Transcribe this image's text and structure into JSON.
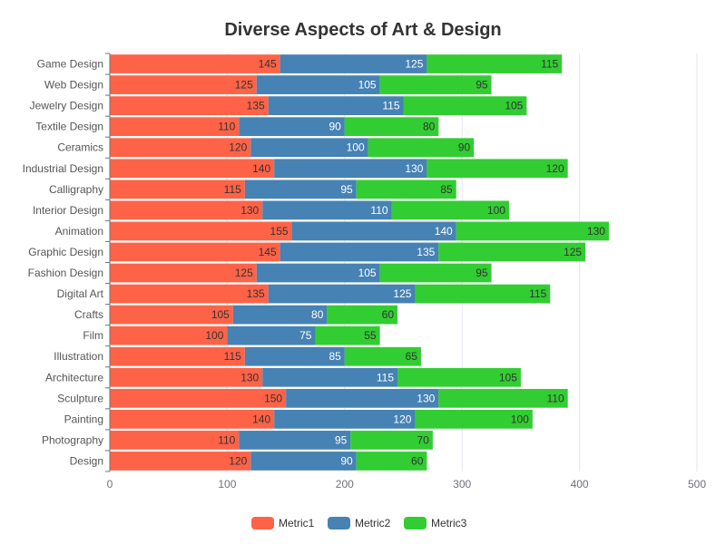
{
  "chart_data": {
    "type": "bar",
    "orientation": "horizontal",
    "stacked": true,
    "title": "Diverse Aspects of Art & Design",
    "xlabel": "",
    "ylabel": "",
    "xlim": [
      0,
      500
    ],
    "x_ticks": [
      0,
      100,
      200,
      300,
      400,
      500
    ],
    "grid": true,
    "legend_position": "bottom-center",
    "categories": [
      "Design",
      "Photography",
      "Painting",
      "Sculpture",
      "Architecture",
      "Illustration",
      "Film",
      "Crafts",
      "Digital Art",
      "Fashion Design",
      "Graphic Design",
      "Animation",
      "Interior Design",
      "Calligraphy",
      "Industrial Design",
      "Ceramics",
      "Textile Design",
      "Jewelry Design",
      "Web Design",
      "Game Design"
    ],
    "series": [
      {
        "name": "Metric1",
        "color": "#ff6347",
        "label_color": "#333333",
        "values": [
          120,
          110,
          140,
          150,
          130,
          115,
          100,
          105,
          135,
          125,
          145,
          155,
          130,
          115,
          140,
          120,
          110,
          135,
          125,
          145
        ]
      },
      {
        "name": "Metric2",
        "color": "#4682b4",
        "label_color": "#ffffff",
        "values": [
          90,
          95,
          120,
          130,
          115,
          85,
          75,
          80,
          125,
          105,
          135,
          140,
          110,
          95,
          130,
          100,
          90,
          115,
          105,
          125
        ]
      },
      {
        "name": "Metric3",
        "color": "#32cd32",
        "label_color": "#333333",
        "values": [
          60,
          70,
          100,
          110,
          105,
          65,
          55,
          60,
          115,
          95,
          125,
          130,
          100,
          85,
          120,
          90,
          80,
          105,
          95,
          115
        ]
      }
    ]
  }
}
